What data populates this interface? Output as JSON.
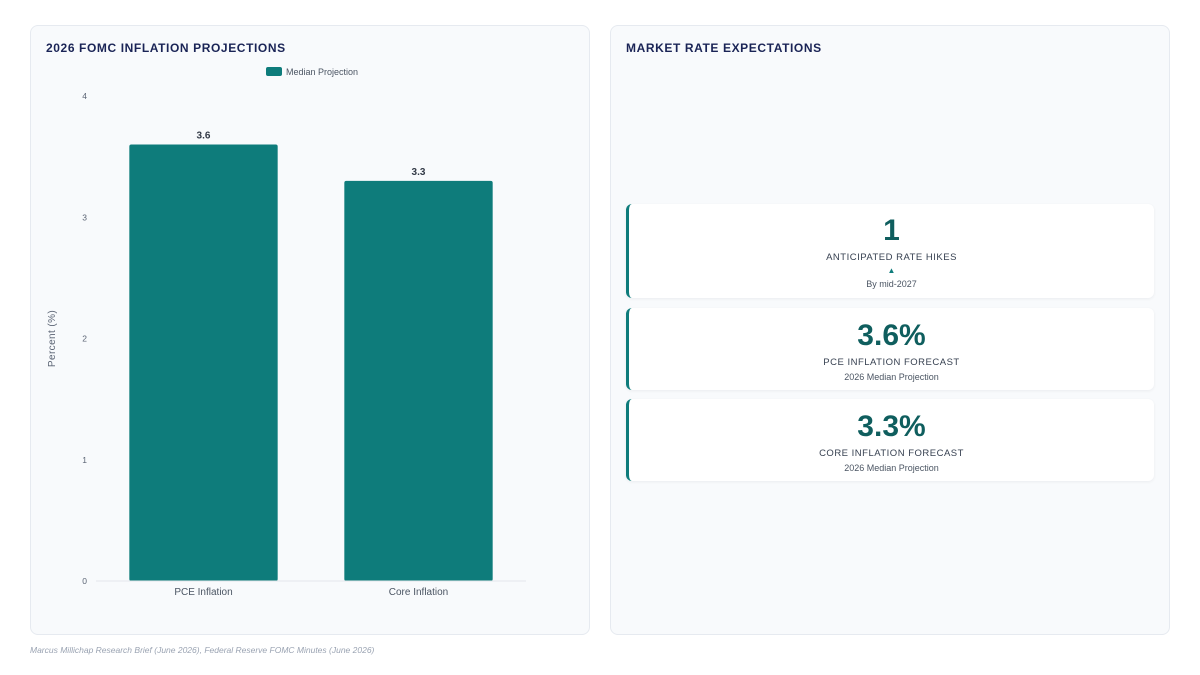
{
  "left_panel": {
    "title": "2026 FOMC INFLATION PROJECTIONS"
  },
  "chart_data": {
    "type": "bar",
    "categories": [
      "PCE Inflation",
      "Core Inflation"
    ],
    "series": [
      {
        "name": "Median Projection",
        "values": [
          3.6,
          3.3
        ]
      }
    ],
    "data_labels": [
      "3.6",
      "3.3"
    ],
    "title": "2026 FOMC INFLATION PROJECTIONS",
    "xlabel": "",
    "ylabel": "Percent (%)",
    "ylim": [
      0,
      4
    ],
    "yticks": [
      "0",
      "1",
      "2",
      "3",
      "4"
    ],
    "grid": false,
    "legend": "top-center",
    "bar_color": "#0e7c7b"
  },
  "right_panel": {
    "title": "MARKET RATE EXPECTATIONS",
    "kpis": [
      {
        "value": "1",
        "label": "ANTICIPATED RATE HIKES",
        "arrow": "▲",
        "sub": "By mid-2027"
      },
      {
        "value": "3.6%",
        "label": "PCE INFLATION FORECAST",
        "sub": "2026 Median Projection"
      },
      {
        "value": "3.3%",
        "label": "CORE INFLATION FORECAST",
        "sub": "2026 Median Projection"
      }
    ],
    "accent_color": "#0e7c7b"
  },
  "footer": {
    "source": "Marcus Millichap Research Brief (June 2026), Federal Reserve FOMC Minutes (June 2026)"
  }
}
